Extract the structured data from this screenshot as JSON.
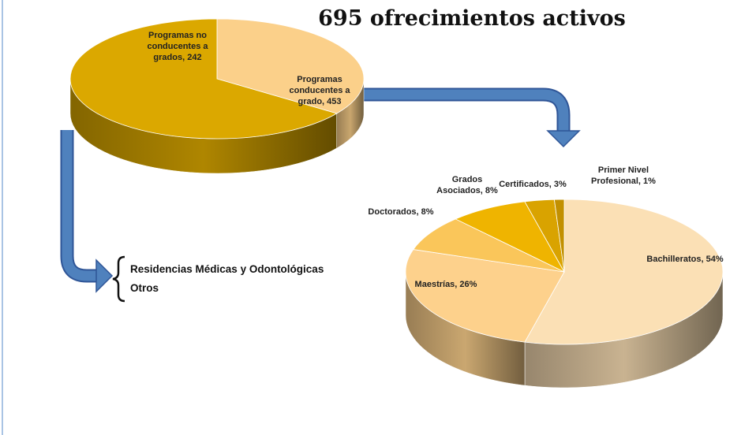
{
  "title": "695 ofrecimientos activos",
  "notes": [
    "Residencias Médicas y Odontológicas",
    "Otros"
  ],
  "chart_data": [
    {
      "type": "pie",
      "value_labels": [
        "Programas no conducentes a grados, 242",
        "Programas conducentes a grado, 453"
      ],
      "values": [
        242,
        453
      ],
      "colors": [
        "#fbd08a",
        "#dba800"
      ]
    },
    {
      "type": "pie",
      "value_labels": [
        "Bachilleratos, 54%",
        "Maestrías, 26%",
        "Doctorados, 8%",
        "Grados Asociados, 8%",
        "Certificados, 3%",
        "Primer Nivel Profesional, 1%"
      ],
      "values": [
        54,
        26,
        8,
        8,
        3,
        1
      ],
      "colors": [
        "#fbe0b5",
        "#fdd18c",
        "#fac65a",
        "#efb400",
        "#d9a300",
        "#c29000"
      ]
    }
  ]
}
